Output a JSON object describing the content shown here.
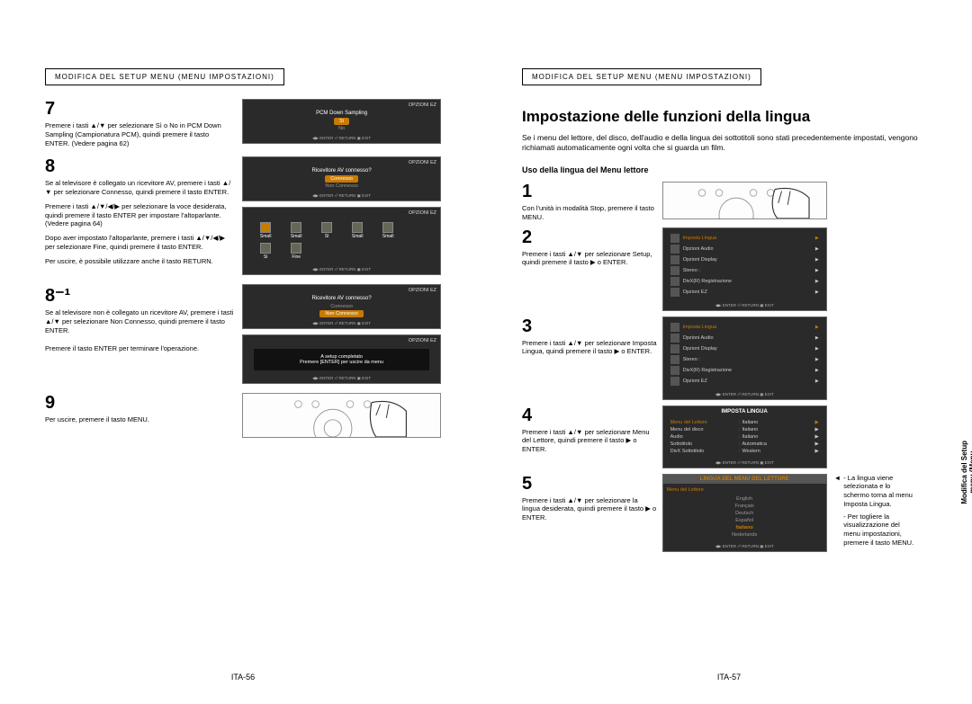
{
  "header_left": "MODIFICA DEL SETUP MENU (MENU IMPOSTAZIONI)",
  "header_right": "MODIFICA DEL SETUP MENU (MENU IMPOSTAZIONI)",
  "page_num_left": "ITA-56",
  "page_num_right": "ITA-57",
  "side_tab": "Modifica del Setup\nmenu (Menu\nimpostazioni)",
  "left": {
    "s7_num": "7",
    "s7_text": "Premere i tasti ▲/▼ per selezionare Sì o No in PCM Down Sampling (Campionatura PCM), quindi premere il tasto ENTER. (Vedere pagina 62)",
    "s7_tv_title": "OPZIONI EZ",
    "s7_tv_label": "PCM Down Sampling",
    "s7_opt1": "Sì",
    "s7_opt2": "No",
    "s7_tv_bottom": "◀▶ ENTER   ⏎ RETURN   ▣ EXIT",
    "s8_num": "8",
    "s8_p1": "Se al televisore è collegato un ricevitore AV, premere i tasti ▲/▼ per selezionare Connesso, quindi premere il tasto ENTER.",
    "s8_p2": "Premere i tasti ▲/▼/◀/▶ per selezionare la voce desiderata, quindi premere il tasto ENTER per impostare l'altoparlante. (Vedere pagina 64)",
    "s8_p3": "Dopo aver impostato l'altoparlante, premere i tasti ▲/▼/◀/▶ per selezionare Fine, quindi premere il tasto ENTER.",
    "s8_p4": "Per uscire, è possibile utilizzare anche il tasto RETURN.",
    "s8_tv1_title": "OPZIONI EZ",
    "s8_tv1_label": "Ricevitore AV connesso?",
    "s8_tv1_opt1": "Connesso",
    "s8_tv1_opt2": "Non Connesso",
    "s8_tv2_title": "OPZIONI EZ",
    "s8_spk": [
      "Small",
      "Small",
      "Sì",
      "Small",
      "Small",
      "Sì",
      "Fine"
    ],
    "s81_num": "8⁻¹",
    "s81_p1": "Se al televisore non è collegato un ricevitore AV, premere i tasti ▲/▼ per selezionare Non Connesso, quindi premere il tasto ENTER.",
    "s81_p2": "Premere il tasto ENTER per terminare l'operazione.",
    "s81_tv1_title": "OPZIONI EZ",
    "s81_tv1_label": "Ricevitore AV connesso?",
    "s81_tv1_opt1": "Connesso",
    "s81_tv1_opt2": "Non Connesso",
    "s81_tv2_title": "OPZIONI EZ",
    "s81_complete1": "A setup completato",
    "s81_complete2": "Premere [ENTER] per uscire da menu",
    "s9_num": "9",
    "s9_text": "Per uscire, premere il tasto MENU."
  },
  "right": {
    "heading": "Impostazione delle funzioni della lingua",
    "intro": "Se i menu del lettore, del disco, dell'audio e della lingua dei sottotitoli sono stati precedentemente impostati, vengono richiamati automaticamente ogni volta che si guarda un film.",
    "subhead": "Uso della lingua del Menu lettore",
    "s1_num": "1",
    "s1_text": "Con l'unità in modalità Stop, premere il tasto MENU.",
    "s2_num": "2",
    "s2_text": "Premere i tasti ▲/▼ per selezionare Setup, quindi premere il tasto ▶ o ENTER.",
    "s2_menu": [
      {
        "label": "Imposta Lingua",
        "sel": true
      },
      {
        "label": "Opzioni Audio",
        "sel": false
      },
      {
        "label": "Opzioni Display",
        "sel": false
      },
      {
        "label": "Stereo :",
        "sel": false
      },
      {
        "label": "DivX(R) Registrazione",
        "sel": false
      },
      {
        "label": "Opzioni EZ",
        "sel": false
      }
    ],
    "s3_num": "3",
    "s3_text": "Premere i tasti ▲/▼ per selezionare Imposta Lingua, quindi premere il tasto ▶ o ENTER.",
    "s3_menu": [
      {
        "label": "Imposta Lingua",
        "sel": true
      },
      {
        "label": "Opzioni Audio",
        "sel": false
      },
      {
        "label": "Opzioni Display",
        "sel": false
      },
      {
        "label": "Stereo :",
        "sel": false
      },
      {
        "label": "DivX(R) Registrazione",
        "sel": false
      },
      {
        "label": "Opzioni EZ",
        "sel": false
      }
    ],
    "s4_num": "4",
    "s4_text": "Premere i tasti ▲/▼ per selezionare Menu del Lettore, quindi premere il tasto ▶ o ENTER.",
    "s4_title": "IMPOSTA LINGUA",
    "s4_rows": [
      {
        "l": "Menu del Lettore",
        "v": "Italiano",
        "sel": true
      },
      {
        "l": "Menu del disco",
        "v": "Italiano",
        "sel": false
      },
      {
        "l": "Audio",
        "v": "Italiano",
        "sel": false
      },
      {
        "l": "Sottotitolo",
        "v": "Automatica",
        "sel": false
      },
      {
        "l": "DivX Sottotitolo",
        "v": "Western",
        "sel": false
      }
    ],
    "s5_num": "5",
    "s5_text": "Premere i tasti ▲/▼ per selezionare la lingua desiderata, quindi premere il tasto ▶ o ENTER.",
    "s5_title": "LINGUA DEL MENU DEL LETTORE",
    "s5_first": "Menu del Lettore",
    "s5_langs": [
      "English",
      "Français",
      "Deutsch",
      "Español",
      "Italiano",
      "Nederlands"
    ],
    "s5_sel": "Italiano",
    "note1": "- La lingua viene selezionata e lo schermo torna al menu Imposta Lingua.",
    "note2": "- Per togliere la visualizzazione del menu impostazioni, premere il tasto MENU."
  }
}
